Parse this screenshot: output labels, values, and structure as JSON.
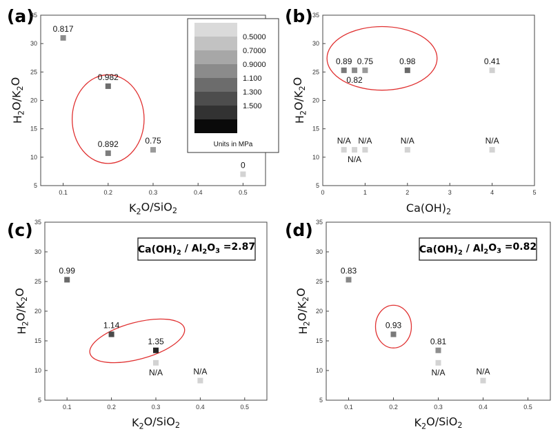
{
  "chart_data": [
    {
      "panel_label": "(a)",
      "type": "scatter",
      "xlabel_parts": [
        [
          "K",
          false
        ],
        [
          "2",
          true
        ],
        [
          "O/SiO",
          false
        ],
        [
          "2",
          true
        ]
      ],
      "ylabel_parts": [
        [
          "H",
          false
        ],
        [
          "2",
          true
        ],
        [
          "O/K",
          false
        ],
        [
          "2",
          true
        ],
        [
          "O",
          false
        ]
      ],
      "xlim": [
        0.05,
        0.55
      ],
      "ylim": [
        5,
        35
      ],
      "xticks": [
        0.1,
        0.2,
        0.3,
        0.4,
        0.5
      ],
      "xtick_labels": [
        "0.1",
        "0.2",
        "0.3",
        "0.4",
        "0.5"
      ],
      "yticks": [
        5,
        10,
        15,
        20,
        25,
        30,
        35
      ],
      "ytick_labels": [
        "5",
        "10",
        "15",
        "20",
        "25",
        "30",
        "35"
      ],
      "points": [
        {
          "x": 0.1,
          "y": 31.0,
          "label": "0.817",
          "label_pos": "above",
          "color": "#8c8c8c"
        },
        {
          "x": 0.2,
          "y": 22.5,
          "label": "0.982",
          "label_pos": "above",
          "color": "#6e6e6e"
        },
        {
          "x": 0.2,
          "y": 10.7,
          "label": "0.892",
          "label_pos": "above",
          "color": "#7d7d7d"
        },
        {
          "x": 0.3,
          "y": 11.3,
          "label": "0.75",
          "label_pos": "above",
          "color": "#9a9a9a"
        },
        {
          "x": 0.5,
          "y": 7.0,
          "label": "0",
          "label_pos": "above",
          "color": "#d3d3d3"
        }
      ],
      "ellipses": [
        {
          "cx": 0.2,
          "cy": 16.7,
          "rx": 0.08,
          "ry": 7.8
        }
      ],
      "legend": {
        "caption": "Units in MPa",
        "entries": [
          {
            "color": "#dadada",
            "label": ""
          },
          {
            "color": "#c2c2c2",
            "label": "0.5000"
          },
          {
            "color": "#a7a7a7",
            "label": "0.7000"
          },
          {
            "color": "#8b8b8b",
            "label": "0.9000"
          },
          {
            "color": "#6c6c6c",
            "label": "1.100"
          },
          {
            "color": "#4d4d4d",
            "label": "1.300"
          },
          {
            "color": "#323232",
            "label": "1.500"
          },
          {
            "color": "#0a0a0a",
            "label": ""
          }
        ]
      }
    },
    {
      "panel_label": "(b)",
      "type": "scatter",
      "xlabel_parts": [
        [
          "Ca(OH)",
          false
        ],
        [
          "2",
          true
        ]
      ],
      "ylabel_parts": [
        [
          "H",
          false
        ],
        [
          "2",
          true
        ],
        [
          "O/K",
          false
        ],
        [
          "2",
          true
        ],
        [
          "O",
          false
        ]
      ],
      "xlim": [
        0,
        5
      ],
      "ylim": [
        5,
        35
      ],
      "xticks": [
        0,
        1,
        2,
        3,
        4,
        5
      ],
      "xtick_labels": [
        "0",
        "1",
        "2",
        "3",
        "4",
        "5"
      ],
      "yticks": [
        5,
        10,
        15,
        20,
        25,
        30,
        35
      ],
      "ytick_labels": [
        "5",
        "10",
        "15",
        "20",
        "25",
        "30",
        "35"
      ],
      "points": [
        {
          "x": 0.5,
          "y": 25.3,
          "label": "0.89",
          "label_pos": "above",
          "color": "#7a7a7a"
        },
        {
          "x": 0.75,
          "y": 25.3,
          "label": "0.82",
          "label_pos": "below",
          "color": "#8c8c8c"
        },
        {
          "x": 1.0,
          "y": 25.3,
          "label": "0.75",
          "label_pos": "above",
          "color": "#9a9a9a"
        },
        {
          "x": 2.0,
          "y": 25.3,
          "label": "0.98",
          "label_pos": "above",
          "color": "#6a6a6a"
        },
        {
          "x": 4.0,
          "y": 25.3,
          "label": "0.41",
          "label_pos": "above",
          "color": "#d0d0d0"
        },
        {
          "x": 0.5,
          "y": 11.3,
          "label": "N/A",
          "label_pos": "above",
          "color": "#d3d3d3"
        },
        {
          "x": 0.75,
          "y": 11.3,
          "label": "N/A",
          "label_pos": "below",
          "color": "#d3d3d3"
        },
        {
          "x": 1.0,
          "y": 11.3,
          "label": "N/A",
          "label_pos": "above",
          "color": "#d3d3d3"
        },
        {
          "x": 2.0,
          "y": 11.3,
          "label": "N/A",
          "label_pos": "above",
          "color": "#d3d3d3"
        },
        {
          "x": 4.0,
          "y": 11.3,
          "label": "N/A",
          "label_pos": "above",
          "color": "#d3d3d3"
        }
      ],
      "ellipses": [
        {
          "cx": 1.4,
          "cy": 27.4,
          "rx": 1.3,
          "ry": 5.6
        }
      ]
    },
    {
      "panel_label": "(c)",
      "type": "scatter",
      "xlabel_parts": [
        [
          "K",
          false
        ],
        [
          "2",
          true
        ],
        [
          "O/SiO",
          false
        ],
        [
          "2",
          true
        ]
      ],
      "ylabel_parts": [
        [
          "H",
          false
        ],
        [
          "2",
          true
        ],
        [
          "O/K",
          false
        ],
        [
          "2",
          true
        ],
        [
          "O",
          false
        ]
      ],
      "xlim": [
        0.05,
        0.55
      ],
      "ylim": [
        5,
        35
      ],
      "xticks": [
        0.1,
        0.2,
        0.3,
        0.4,
        0.5
      ],
      "xtick_labels": [
        "0.1",
        "0.2",
        "0.3",
        "0.4",
        "0.5"
      ],
      "yticks": [
        5,
        10,
        15,
        20,
        25,
        30,
        35
      ],
      "ytick_labels": [
        "5",
        "10",
        "15",
        "20",
        "25",
        "30",
        "35"
      ],
      "points": [
        {
          "x": 0.1,
          "y": 25.3,
          "label": "0.99",
          "label_pos": "above",
          "color": "#6a6a6a"
        },
        {
          "x": 0.2,
          "y": 16.1,
          "label": "1.14",
          "label_pos": "above",
          "color": "#4a4a4a"
        },
        {
          "x": 0.3,
          "y": 13.4,
          "label": "1.35",
          "label_pos": "above",
          "color": "#262626"
        },
        {
          "x": 0.3,
          "y": 11.3,
          "label": "N/A",
          "label_pos": "below",
          "color": "#d3d3d3"
        },
        {
          "x": 0.4,
          "y": 8.3,
          "label": "N/A",
          "label_pos": "above",
          "color": "#d3d3d3"
        }
      ],
      "ellipses": [
        {
          "cx": 0.258,
          "cy": 15.0,
          "rx": 0.11,
          "ry": 3.1,
          "rotate": 15
        }
      ],
      "annotation_parts": [
        [
          "Ca(OH)",
          false
        ],
        [
          "2",
          true
        ],
        [
          " / Al",
          false
        ],
        [
          "2",
          true
        ],
        [
          "O",
          false
        ],
        [
          "3",
          true
        ],
        [
          " =2.87",
          false
        ]
      ]
    },
    {
      "panel_label": "(d)",
      "type": "scatter",
      "xlabel_parts": [
        [
          "K",
          false
        ],
        [
          "2",
          true
        ],
        [
          "O/SiO",
          false
        ],
        [
          "2",
          true
        ]
      ],
      "ylabel_parts": [
        [
          "H",
          false
        ],
        [
          "2",
          true
        ],
        [
          "O/K",
          false
        ],
        [
          "2",
          true
        ],
        [
          "O",
          false
        ]
      ],
      "xlim": [
        0.05,
        0.55
      ],
      "ylim": [
        5,
        35
      ],
      "xticks": [
        0.1,
        0.2,
        0.3,
        0.4,
        0.5
      ],
      "xtick_labels": [
        "0.1",
        "0.2",
        "0.3",
        "0.4",
        "0.5"
      ],
      "yticks": [
        5,
        10,
        15,
        20,
        25,
        30,
        35
      ],
      "ytick_labels": [
        "5",
        "10",
        "15",
        "20",
        "25",
        "30",
        "35"
      ],
      "points": [
        {
          "x": 0.1,
          "y": 25.3,
          "label": "0.83",
          "label_pos": "above",
          "color": "#888888"
        },
        {
          "x": 0.2,
          "y": 16.1,
          "label": "0.93",
          "label_pos": "above",
          "color": "#7a7a7a"
        },
        {
          "x": 0.3,
          "y": 13.4,
          "label": "0.81",
          "label_pos": "above",
          "color": "#8e8e8e"
        },
        {
          "x": 0.3,
          "y": 11.3,
          "label": "N/A",
          "label_pos": "below",
          "color": "#d3d3d3"
        },
        {
          "x": 0.4,
          "y": 8.3,
          "label": "N/A",
          "label_pos": "above",
          "color": "#d3d3d3"
        }
      ],
      "ellipses": [
        {
          "cx": 0.2,
          "cy": 17.4,
          "rx": 0.04,
          "ry": 3.6
        }
      ],
      "annotation_parts": [
        [
          "Ca(OH)",
          false
        ],
        [
          "2",
          true
        ],
        [
          " / Al",
          false
        ],
        [
          "2",
          true
        ],
        [
          "O",
          false
        ],
        [
          "3",
          true
        ],
        [
          " =0.82",
          false
        ]
      ]
    }
  ]
}
